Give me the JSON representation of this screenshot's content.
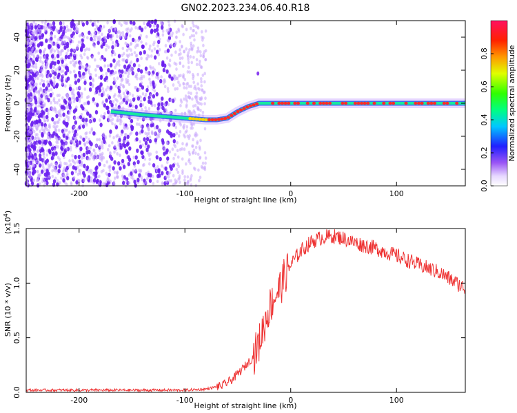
{
  "title": "GN02.2023.234.06.40.R18",
  "colors": {
    "spectrogram_dots": "#7b2cf0",
    "snr_line": "#ee3333",
    "axis": "#000000"
  },
  "chart_data": [
    {
      "type": "heatmap",
      "xlabel": "Height of straight line (km)",
      "ylabel": "Frequency (Hz)",
      "xlim": [
        -250,
        165
      ],
      "ylim": [
        -50,
        50
      ],
      "x_ticks": [
        -200,
        -100,
        0,
        100
      ],
      "x_tick_labels": [
        "-200",
        "-100",
        "0",
        "100"
      ],
      "y_ticks": [
        -40,
        -20,
        0,
        20,
        40
      ],
      "y_tick_labels": [
        "-40",
        "-20",
        "0",
        "20",
        "40"
      ],
      "colorbar": {
        "label": "Normalized spectral amplitude",
        "range": [
          0,
          1
        ],
        "ticks": [
          0.0,
          0.2,
          0.4,
          0.6,
          0.8
        ],
        "tick_labels": [
          "0.0",
          "0.2",
          "0.4",
          "0.6",
          "0.8"
        ]
      },
      "dominant_track": {
        "x": [
          -170,
          -140,
          -120,
          -100,
          -80,
          -70,
          -60,
          -50,
          -40,
          -30,
          -20,
          -10,
          0,
          20,
          50,
          100,
          150,
          165
        ],
        "y": [
          -5,
          -7,
          -8,
          -9,
          -10,
          -10,
          -9,
          -5,
          -2,
          0,
          0,
          0,
          0,
          0,
          0,
          0,
          0,
          0
        ]
      }
    },
    {
      "type": "line",
      "xlabel": "Height of straight line (km)",
      "ylabel": "SNR (10 * v/v)",
      "y_exponent_label": "(x10",
      "y_exponent_power": "4",
      "y_exponent_close": ")",
      "xlim": [
        -250,
        165
      ],
      "ylim": [
        0,
        1.5
      ],
      "x_ticks": [
        -200,
        -100,
        0,
        100
      ],
      "x_tick_labels": [
        "-200",
        "-100",
        "0",
        "100"
      ],
      "y_ticks": [
        0.0,
        0.5,
        1.0,
        1.5
      ],
      "y_tick_labels": [
        "0.0",
        "0.5",
        "1.0",
        "1.5"
      ],
      "series": [
        {
          "x": [
            -250,
            -200,
            -150,
            -100,
            -80,
            -65,
            -55,
            -45,
            -35,
            -30,
            -25,
            -20,
            -15,
            -10,
            -5,
            0,
            10,
            20,
            30,
            40,
            50,
            60,
            80,
            100,
            120,
            140,
            165
          ],
          "y": [
            0.02,
            0.02,
            0.02,
            0.02,
            0.03,
            0.06,
            0.12,
            0.22,
            0.33,
            0.45,
            0.62,
            0.78,
            0.88,
            0.96,
            1.08,
            1.17,
            1.3,
            1.38,
            1.42,
            1.43,
            1.41,
            1.37,
            1.32,
            1.25,
            1.17,
            1.1,
            0.95
          ]
        }
      ]
    }
  ]
}
